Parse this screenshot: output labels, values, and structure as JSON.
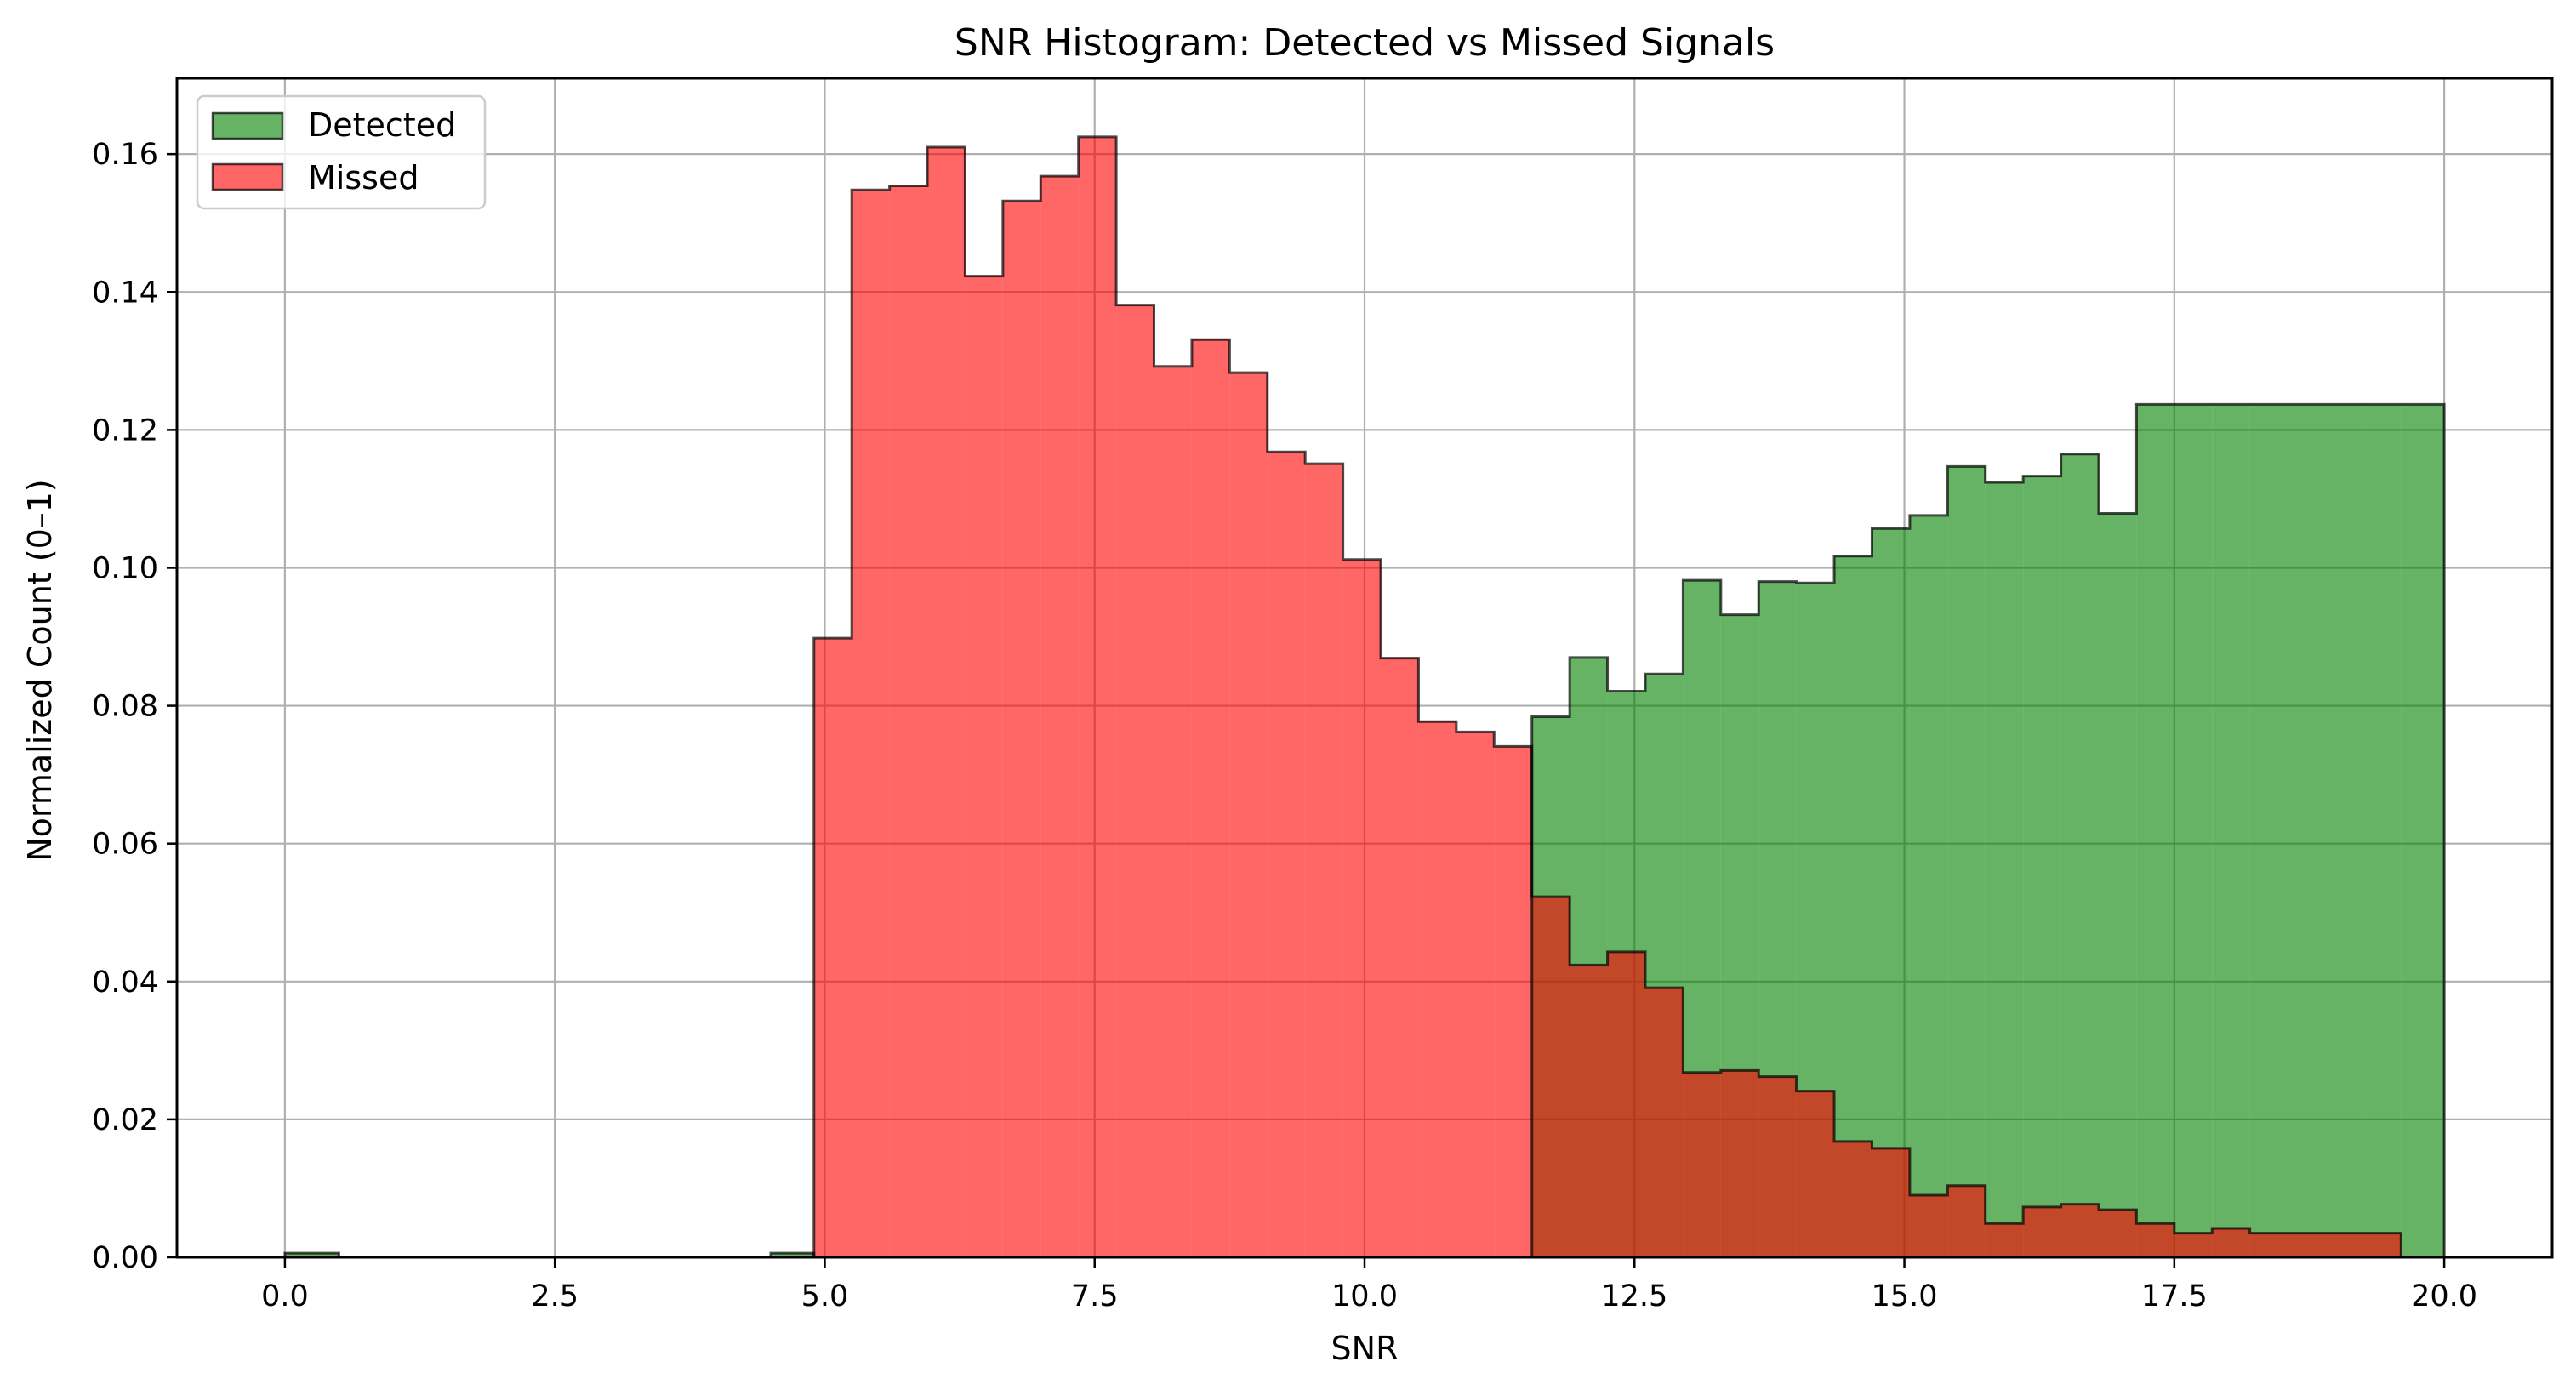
{
  "chart_data": {
    "type": "histogram",
    "title": "SNR Histogram: Detected vs Missed Signals",
    "xlabel": "SNR",
    "ylabel": "Normalized Count (0–1)",
    "xlim": [
      -1.0,
      21.0
    ],
    "ylim": [
      0.0,
      0.171
    ],
    "grid": true,
    "legend_position": "top-left",
    "x_ticks": [
      "0.0",
      "2.5",
      "5.0",
      "7.5",
      "10.0",
      "12.5",
      "15.0",
      "17.5",
      "20.0"
    ],
    "y_ticks": [
      "0.00",
      "0.02",
      "0.04",
      "0.06",
      "0.08",
      "0.10",
      "0.12",
      "0.14",
      "0.16"
    ],
    "series": [
      {
        "name": "Detected",
        "color": "#008000",
        "bin_edges": [
          0.0,
          0.5,
          1.0,
          1.5,
          2.0,
          2.5,
          3.0,
          3.5,
          4.0,
          4.5,
          4.9,
          5.25,
          5.6,
          5.95,
          6.3,
          6.65,
          7.0,
          7.35,
          7.7,
          8.05,
          8.4,
          8.75,
          9.1,
          9.45,
          9.8,
          10.15,
          10.5,
          10.85,
          11.2,
          11.55,
          11.9,
          12.25,
          12.6,
          12.95,
          13.3,
          13.65,
          14.0,
          14.35,
          14.7,
          15.05,
          15.4,
          15.75,
          16.1,
          16.45,
          16.8,
          17.15,
          17.5,
          17.85,
          18.2,
          18.55,
          18.9,
          19.25,
          19.6,
          20.0
        ],
        "values": [
          0.0006,
          0.0,
          0.0,
          0.0,
          0.0,
          0.0,
          0.0,
          0.0,
          0.0,
          0.0006,
          0.0,
          0.0,
          0.0,
          0.0,
          0.0,
          0.0,
          0.0,
          0.0,
          0.0,
          0.0,
          0.0,
          0.0,
          0.0,
          0.0,
          0.0,
          0.0,
          0.0,
          0.0,
          0.0,
          0.0784,
          0.087,
          0.0821,
          0.0846,
          0.0982,
          0.0932,
          0.098,
          0.0978,
          0.1017,
          0.1057,
          0.1076,
          0.1147,
          0.1124,
          0.1133,
          0.1165,
          0.1079,
          0.1237,
          0.1237,
          0.1237,
          0.1237,
          0.1237,
          0.1237,
          0.1237,
          0.1237
        ]
      },
      {
        "name": "Missed",
        "color": "#ff0000",
        "bin_edges": [
          4.9,
          5.25,
          5.6,
          5.95,
          6.3,
          6.65,
          7.0,
          7.35,
          7.7,
          8.05,
          8.4,
          8.75,
          9.1,
          9.45,
          9.8,
          10.15,
          10.5,
          10.85,
          11.2,
          11.55,
          11.9,
          12.25,
          12.6,
          12.95,
          13.3,
          13.65,
          14.0,
          14.35,
          14.7,
          15.05,
          15.4,
          15.75,
          16.1,
          16.45,
          16.8,
          17.15,
          17.5,
          17.85,
          18.2,
          18.55,
          18.9,
          19.25,
          19.6
        ],
        "values": [
          0.0898,
          0.1548,
          0.1554,
          0.161,
          0.1423,
          0.1532,
          0.1568,
          0.1625,
          0.1381,
          0.1292,
          0.1331,
          0.1283,
          0.1168,
          0.1151,
          0.1012,
          0.0869,
          0.0777,
          0.0762,
          0.0741,
          0.0523,
          0.0424,
          0.0443,
          0.0391,
          0.0268,
          0.0271,
          0.0262,
          0.0241,
          0.0168,
          0.0158,
          0.009,
          0.0104,
          0.0049,
          0.0073,
          0.0077,
          0.0069,
          0.0049,
          0.0035,
          0.0042,
          0.0035,
          0.0035,
          0.0035,
          0.0035
        ]
      }
    ]
  }
}
